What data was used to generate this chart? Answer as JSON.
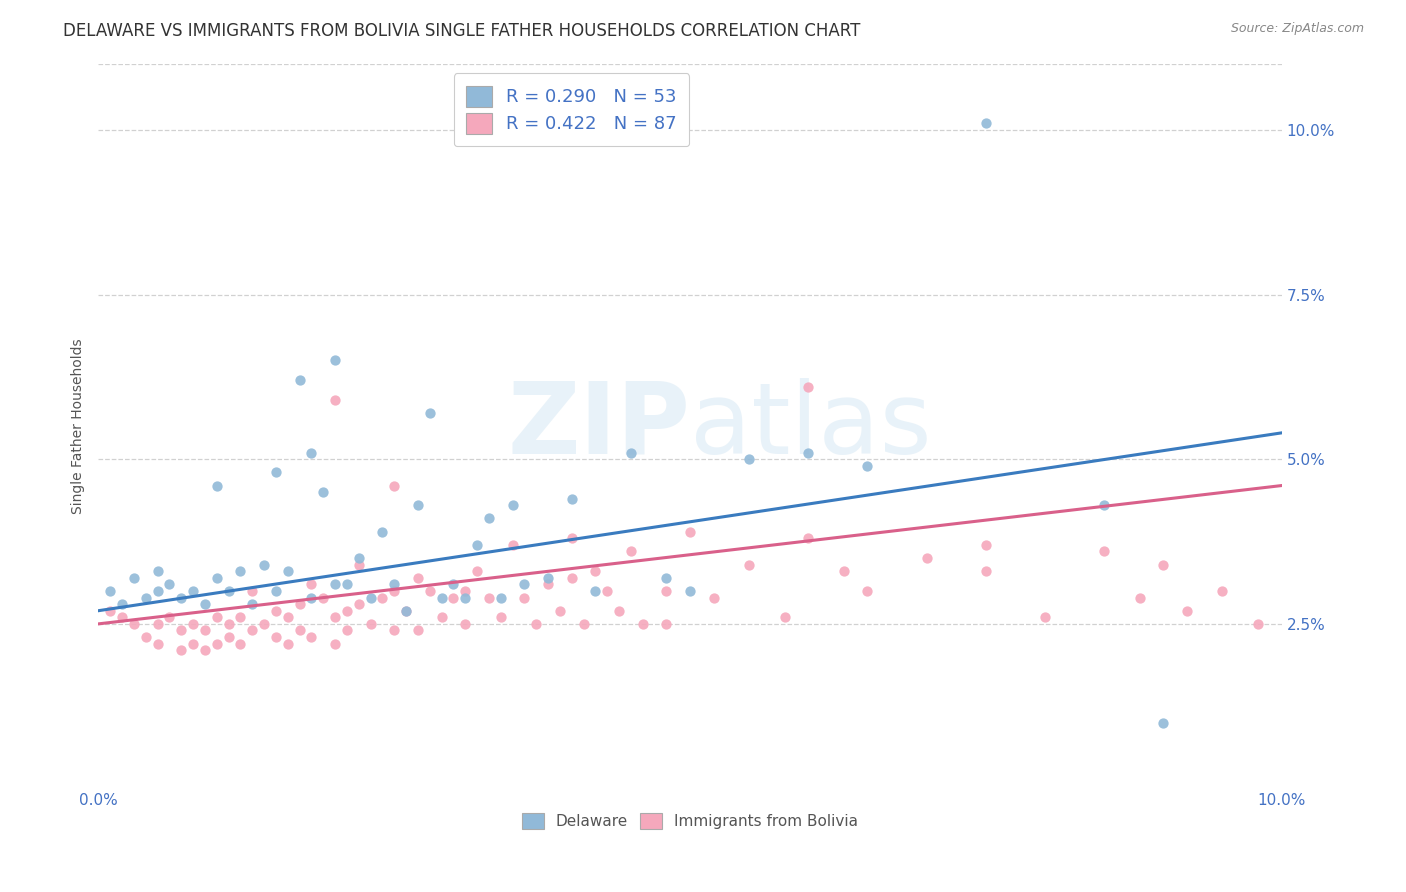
{
  "title": "DELAWARE VS IMMIGRANTS FROM BOLIVIA SINGLE FATHER HOUSEHOLDS CORRELATION CHART",
  "source": "Source: ZipAtlas.com",
  "ylabel": "Single Father Households",
  "xlim": [
    0.0,
    0.1
  ],
  "ylim": [
    0.0,
    0.11
  ],
  "yticks": [
    0.025,
    0.05,
    0.075,
    0.1
  ],
  "ytick_labels": [
    "2.5%",
    "5.0%",
    "7.5%",
    "10.0%"
  ],
  "xtick_vals": [
    0.0,
    0.1
  ],
  "xtick_labels": [
    "0.0%",
    "10.0%"
  ],
  "legend_blue_R": "R = 0.290",
  "legend_blue_N": "N = 53",
  "legend_pink_R": "R = 0.422",
  "legend_pink_N": "N = 87",
  "blue_scatter_color": "#91b9d8",
  "pink_scatter_color": "#f5a8bc",
  "blue_line_color": "#3a7bbf",
  "pink_line_color": "#d9608a",
  "legend_label_blue": "Delaware",
  "legend_label_pink": "Immigrants from Bolivia",
  "watermark_zip": "ZIP",
  "watermark_atlas": "atlas",
  "blue_trend_y_start": 0.027,
  "blue_trend_y_end": 0.054,
  "pink_trend_y_start": 0.025,
  "pink_trend_y_end": 0.046,
  "bg_color": "#ffffff",
  "grid_color": "#cccccc",
  "title_fontsize": 12,
  "axis_label_fontsize": 10,
  "tick_fontsize": 11,
  "legend_fontsize": 13,
  "blue_x": [
    0.001,
    0.002,
    0.003,
    0.004,
    0.005,
    0.005,
    0.006,
    0.007,
    0.008,
    0.009,
    0.01,
    0.01,
    0.011,
    0.012,
    0.013,
    0.014,
    0.015,
    0.015,
    0.016,
    0.017,
    0.018,
    0.018,
    0.019,
    0.02,
    0.02,
    0.021,
    0.022,
    0.023,
    0.024,
    0.025,
    0.026,
    0.027,
    0.028,
    0.029,
    0.03,
    0.031,
    0.032,
    0.033,
    0.034,
    0.035,
    0.036,
    0.038,
    0.04,
    0.042,
    0.045,
    0.048,
    0.05,
    0.055,
    0.06,
    0.065,
    0.075,
    0.085,
    0.09
  ],
  "blue_y": [
    0.03,
    0.028,
    0.032,
    0.029,
    0.03,
    0.033,
    0.031,
    0.029,
    0.03,
    0.028,
    0.032,
    0.046,
    0.03,
    0.033,
    0.028,
    0.034,
    0.03,
    0.048,
    0.033,
    0.062,
    0.029,
    0.051,
    0.045,
    0.031,
    0.065,
    0.031,
    0.035,
    0.029,
    0.039,
    0.031,
    0.027,
    0.043,
    0.057,
    0.029,
    0.031,
    0.029,
    0.037,
    0.041,
    0.029,
    0.043,
    0.031,
    0.032,
    0.044,
    0.03,
    0.051,
    0.032,
    0.03,
    0.05,
    0.051,
    0.049,
    0.101,
    0.043,
    0.01
  ],
  "pink_x": [
    0.001,
    0.002,
    0.003,
    0.004,
    0.005,
    0.005,
    0.006,
    0.007,
    0.007,
    0.008,
    0.008,
    0.009,
    0.009,
    0.01,
    0.01,
    0.011,
    0.011,
    0.012,
    0.012,
    0.013,
    0.013,
    0.014,
    0.015,
    0.015,
    0.016,
    0.016,
    0.017,
    0.017,
    0.018,
    0.018,
    0.019,
    0.02,
    0.02,
    0.021,
    0.021,
    0.022,
    0.022,
    0.023,
    0.024,
    0.025,
    0.025,
    0.026,
    0.027,
    0.027,
    0.028,
    0.029,
    0.03,
    0.031,
    0.031,
    0.032,
    0.033,
    0.034,
    0.035,
    0.036,
    0.037,
    0.038,
    0.039,
    0.04,
    0.041,
    0.042,
    0.043,
    0.044,
    0.045,
    0.046,
    0.048,
    0.05,
    0.052,
    0.055,
    0.058,
    0.06,
    0.063,
    0.065,
    0.07,
    0.075,
    0.08,
    0.085,
    0.088,
    0.09,
    0.092,
    0.095,
    0.098,
    0.075,
    0.06,
    0.04,
    0.048,
    0.02,
    0.025
  ],
  "pink_y": [
    0.027,
    0.026,
    0.025,
    0.023,
    0.025,
    0.022,
    0.026,
    0.024,
    0.021,
    0.025,
    0.022,
    0.024,
    0.021,
    0.026,
    0.022,
    0.025,
    0.023,
    0.026,
    0.022,
    0.03,
    0.024,
    0.025,
    0.027,
    0.023,
    0.026,
    0.022,
    0.028,
    0.024,
    0.031,
    0.023,
    0.029,
    0.026,
    0.022,
    0.027,
    0.024,
    0.034,
    0.028,
    0.025,
    0.029,
    0.03,
    0.024,
    0.027,
    0.032,
    0.024,
    0.03,
    0.026,
    0.029,
    0.03,
    0.025,
    0.033,
    0.029,
    0.026,
    0.037,
    0.029,
    0.025,
    0.031,
    0.027,
    0.032,
    0.025,
    0.033,
    0.03,
    0.027,
    0.036,
    0.025,
    0.03,
    0.039,
    0.029,
    0.034,
    0.026,
    0.038,
    0.033,
    0.03,
    0.035,
    0.033,
    0.026,
    0.036,
    0.029,
    0.034,
    0.027,
    0.03,
    0.025,
    0.037,
    0.061,
    0.038,
    0.025,
    0.059,
    0.046
  ]
}
